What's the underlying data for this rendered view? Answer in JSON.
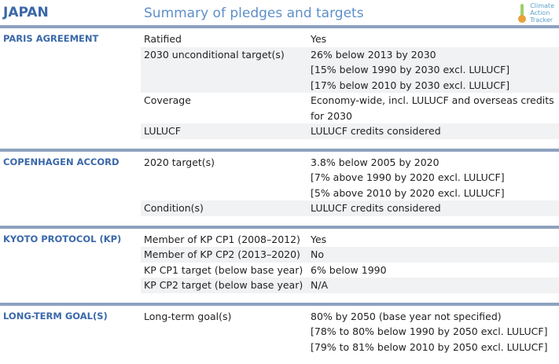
{
  "header": {
    "title": "JAPAN",
    "subtitle": "Summary of pledges and targets",
    "logo": [
      "Climate",
      "Action",
      "Tracker"
    ]
  },
  "sections": [
    {
      "title": "PARIS AGREEMENT",
      "rows": [
        {
          "label": "Ratified",
          "lines": [
            "Yes"
          ]
        },
        {
          "label": "2030 unconditional target(s)",
          "lines": [
            "26% below 2013 by 2030",
            "[15% below 1990 by 2030 excl. LULUCF]",
            "[17% below 2010 by 2030 excl. LULUCF]"
          ]
        },
        {
          "label": "Coverage",
          "lines": [
            "Economy-wide, incl. LULUCF and overseas credits for 2030"
          ]
        },
        {
          "label": "LULUCF",
          "lines": [
            "LULUCF credits considered"
          ]
        }
      ]
    },
    {
      "title": "COPENHAGEN ACCORD",
      "rows": [
        {
          "label": "2020 target(s)",
          "lines": [
            "3.8% below 2005 by 2020",
            "[7% above 1990 by 2020 excl. LULUCF]",
            "[5% above 2010 by 2020 excl. LULUCF]"
          ]
        },
        {
          "label": "Condition(s)",
          "lines": [
            "LULUCF credits considered"
          ]
        }
      ]
    },
    {
      "title": "KYOTO PROTOCOL (KP)",
      "rows": [
        {
          "label": "Member of KP CP1 (2008–2012)",
          "lines": [
            "Yes"
          ]
        },
        {
          "label": "Member of KP CP2 (2013–2020)",
          "lines": [
            "No"
          ]
        },
        {
          "label": "KP CP1 target (below base year)",
          "lines": [
            "6% below 1990"
          ]
        },
        {
          "label": "KP CP2 target (below base year)",
          "lines": [
            "N/A"
          ]
        }
      ]
    },
    {
      "title": "LONG-TERM GOAL(S)",
      "rows": [
        {
          "label": "Long-term goal(s)",
          "lines": [
            "80% by 2050 (base year not specified)",
            "[78% to 80% below 1990 by 2050 excl. LULUCF]",
            "[79% to 81% below 2010 by 2050 excl. LULUCF]"
          ]
        }
      ]
    }
  ]
}
